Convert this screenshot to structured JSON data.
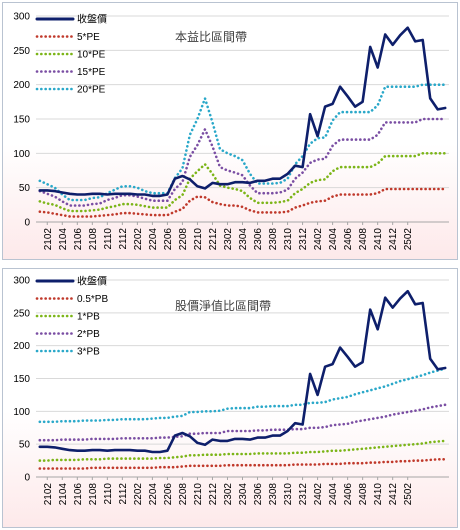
{
  "chart_data": [
    {
      "type": "line",
      "title": "本益比區間帶",
      "xlabel": "",
      "ylabel": "",
      "ylim": [
        0,
        300
      ],
      "yticks": [
        0,
        50,
        100,
        150,
        200,
        250,
        300
      ],
      "grid": "horizontal",
      "legend": "top-left",
      "x_tick_labels": [
        "2102",
        "2104",
        "2106",
        "2108",
        "2110",
        "2112",
        "2202",
        "2204",
        "2206",
        "2208",
        "2210",
        "2212",
        "2302",
        "2304",
        "2306",
        "2308",
        "2310",
        "2312",
        "2402",
        "2404",
        "2406",
        "2408",
        "2410",
        "2412",
        "2502"
      ],
      "start_month": "2101",
      "series": [
        {
          "name": "收盤價",
          "style": "solid",
          "color": "#0e1f6b",
          "values": [
            46,
            46,
            45,
            43,
            41,
            40,
            40,
            41,
            41,
            40,
            41,
            41,
            41,
            40,
            40,
            38,
            38,
            40,
            63,
            67,
            62,
            52,
            49,
            57,
            55,
            55,
            58,
            58,
            57,
            60,
            60,
            63,
            63,
            70,
            82,
            80,
            157,
            125,
            168,
            172,
            197,
            183,
            168,
            175,
            255,
            225,
            273,
            258,
            272,
            283,
            263,
            265,
            180,
            164,
            166
          ]
        },
        {
          "name": "5*PE",
          "style": "dotted",
          "color": "#c0392b",
          "values": [
            15,
            14,
            12,
            10,
            8,
            8,
            8,
            8,
            9,
            10,
            11,
            13,
            13,
            12,
            11,
            10,
            10,
            10,
            15,
            19,
            31,
            37,
            36,
            29,
            26,
            24,
            24,
            22,
            17,
            14,
            14,
            14,
            14,
            15,
            21,
            24,
            28,
            30,
            31,
            37,
            40,
            40,
            40,
            40,
            40,
            42,
            48,
            48,
            48,
            48,
            48,
            48,
            48,
            48,
            48
          ]
        },
        {
          "name": "10*PE",
          "style": "dotted",
          "color": "#7cb518",
          "values": [
            30,
            27,
            25,
            20,
            16,
            16,
            16,
            17,
            18,
            21,
            23,
            26,
            26,
            25,
            23,
            21,
            21,
            21,
            32,
            39,
            63,
            74,
            84,
            70,
            53,
            50,
            48,
            45,
            35,
            28,
            28,
            28,
            29,
            31,
            42,
            48,
            57,
            61,
            62,
            74,
            80,
            80,
            80,
            80,
            80,
            85,
            96,
            96,
            96,
            96,
            96,
            100,
            100,
            100,
            100
          ]
        },
        {
          "name": "15*PE",
          "style": "dotted",
          "color": "#7a4ea3",
          "values": [
            45,
            41,
            37,
            30,
            24,
            24,
            24,
            26,
            27,
            32,
            35,
            39,
            39,
            37,
            34,
            31,
            31,
            31,
            48,
            58,
            95,
            112,
            135,
            110,
            80,
            75,
            72,
            68,
            53,
            42,
            42,
            42,
            43,
            47,
            63,
            72,
            86,
            91,
            92,
            111,
            120,
            120,
            120,
            120,
            120,
            127,
            145,
            145,
            145,
            145,
            145,
            150,
            150,
            150,
            150
          ]
        },
        {
          "name": "20*PE",
          "style": "dotted",
          "color": "#2aa8c9",
          "values": [
            60,
            55,
            50,
            40,
            32,
            32,
            32,
            35,
            36,
            42,
            47,
            52,
            52,
            50,
            45,
            42,
            42,
            42,
            64,
            78,
            127,
            150,
            180,
            145,
            106,
            100,
            96,
            90,
            70,
            56,
            56,
            56,
            57,
            63,
            84,
            96,
            114,
            122,
            123,
            148,
            160,
            160,
            160,
            160,
            160,
            170,
            197,
            197,
            197,
            197,
            197,
            200,
            200,
            200,
            200
          ]
        }
      ]
    },
    {
      "type": "line",
      "title": "股價淨值比區間帶",
      "xlabel": "",
      "ylabel": "",
      "ylim": [
        0,
        300
      ],
      "yticks": [
        0,
        50,
        100,
        150,
        200,
        250,
        300
      ],
      "grid": "horizontal",
      "legend": "top-left",
      "x_tick_labels": [
        "2102",
        "2104",
        "2106",
        "2108",
        "2110",
        "2112",
        "2202",
        "2204",
        "2206",
        "2208",
        "2210",
        "2212",
        "2302",
        "2304",
        "2306",
        "2308",
        "2310",
        "2312",
        "2402",
        "2404",
        "2406",
        "2408",
        "2410",
        "2412",
        "2502"
      ],
      "start_month": "2101",
      "series": [
        {
          "name": "收盤價",
          "style": "solid",
          "color": "#0e1f6b",
          "values": [
            46,
            46,
            45,
            43,
            41,
            40,
            40,
            41,
            41,
            40,
            41,
            41,
            41,
            40,
            40,
            38,
            38,
            40,
            63,
            67,
            62,
            52,
            49,
            57,
            55,
            55,
            58,
            58,
            57,
            60,
            60,
            63,
            63,
            70,
            82,
            80,
            157,
            125,
            168,
            172,
            197,
            183,
            168,
            175,
            255,
            225,
            273,
            258,
            272,
            283,
            263,
            265,
            180,
            164,
            166
          ]
        },
        {
          "name": "0.5*PB",
          "style": "dotted",
          "color": "#c0392b",
          "values": [
            13,
            13,
            13,
            13,
            13,
            13,
            13,
            14,
            14,
            14,
            14,
            14,
            14,
            14,
            14,
            14,
            15,
            15,
            15,
            16,
            17,
            17,
            17,
            17,
            17,
            18,
            18,
            18,
            18,
            18,
            18,
            18,
            18,
            18,
            19,
            19,
            19,
            19,
            20,
            20,
            20,
            21,
            21,
            21,
            22,
            22,
            23,
            23,
            24,
            24,
            25,
            25,
            26,
            27,
            27
          ]
        },
        {
          "name": "1*PB",
          "style": "dotted",
          "color": "#7cb518",
          "values": [
            25,
            25,
            26,
            26,
            26,
            26,
            27,
            27,
            27,
            28,
            28,
            28,
            28,
            28,
            28,
            28,
            29,
            29,
            30,
            31,
            33,
            33,
            34,
            34,
            34,
            35,
            35,
            35,
            35,
            36,
            36,
            36,
            36,
            36,
            37,
            37,
            38,
            38,
            39,
            40,
            40,
            41,
            42,
            43,
            44,
            45,
            46,
            47,
            48,
            49,
            50,
            51,
            53,
            54,
            55
          ]
        },
        {
          "name": "2*PB",
          "style": "dotted",
          "color": "#7a4ea3",
          "values": [
            56,
            56,
            56,
            57,
            57,
            57,
            57,
            58,
            58,
            58,
            58,
            59,
            59,
            59,
            59,
            59,
            60,
            60,
            61,
            62,
            66,
            66,
            67,
            67,
            67,
            70,
            70,
            70,
            70,
            71,
            71,
            72,
            72,
            72,
            73,
            73,
            75,
            75,
            76,
            79,
            80,
            81,
            84,
            86,
            88,
            90,
            92,
            95,
            97,
            99,
            101,
            103,
            106,
            108,
            110
          ]
        },
        {
          "name": "3*PB",
          "style": "dotted",
          "color": "#2aa8c9",
          "values": [
            84,
            84,
            84,
            85,
            85,
            85,
            86,
            86,
            86,
            87,
            87,
            88,
            88,
            88,
            88,
            89,
            90,
            90,
            92,
            93,
            99,
            99,
            100,
            100,
            101,
            104,
            105,
            105,
            105,
            107,
            107,
            108,
            108,
            108,
            110,
            110,
            113,
            113,
            114,
            118,
            120,
            122,
            126,
            129,
            132,
            135,
            138,
            142,
            146,
            149,
            152,
            155,
            159,
            162,
            165
          ]
        }
      ]
    }
  ]
}
